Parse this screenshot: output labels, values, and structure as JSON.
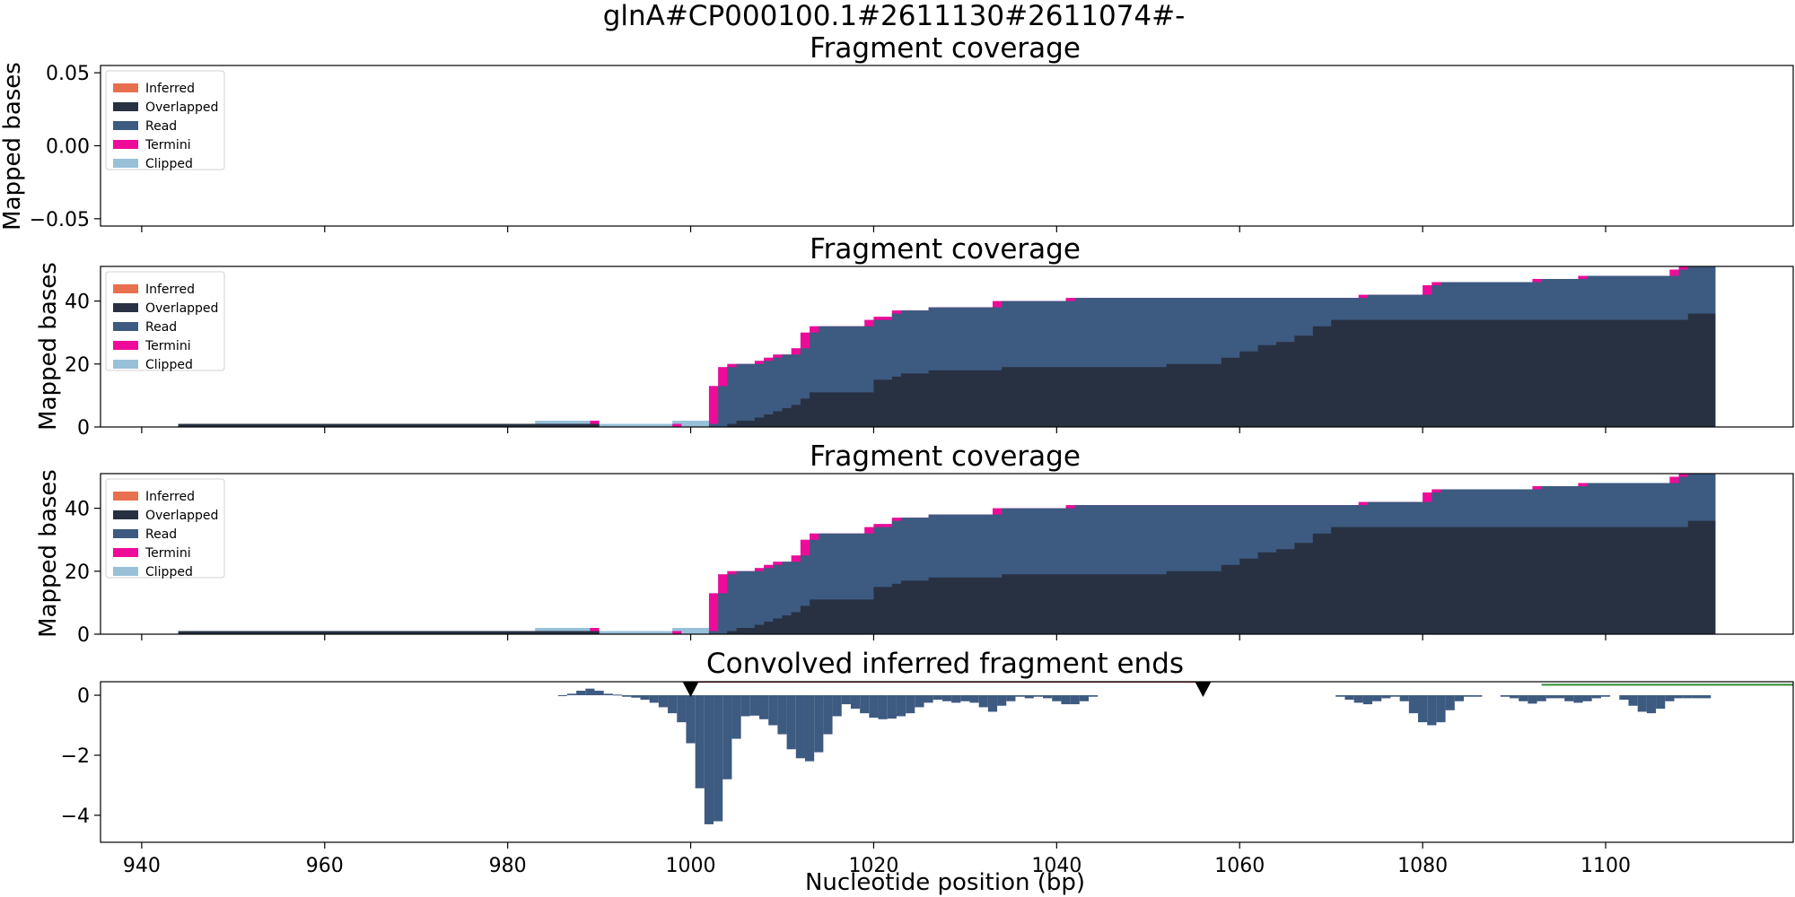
{
  "figure": {
    "suptitle": "glnA#CP000100.1#2611130#2611074#-",
    "xlabel": "Nucleotide position (bp)",
    "xlim": [
      935.5,
      1120.5
    ],
    "xticks": [
      940,
      960,
      980,
      1000,
      1020,
      1040,
      1060,
      1080,
      1100
    ],
    "colors": {
      "Inferred": "#e8704e",
      "Overlapped": "#283142",
      "Read": "#3d5a80",
      "Termini": "#ee0b9a",
      "Clipped": "#98c1d9",
      "red_line": "#8b0000",
      "green_line": "#2e8b2e",
      "marker": "#000000"
    }
  },
  "chart_data": [
    {
      "type": "area",
      "title": "Fragment coverage",
      "ylabel": "Mapped bases",
      "ylim": [
        -0.055,
        0.055
      ],
      "yticks": [
        "0.05",
        "0.00",
        "−0.05"
      ],
      "ytick_values": [
        0.05,
        0.0,
        -0.05
      ],
      "legend": {
        "placement": "top-left",
        "entries": [
          "Inferred",
          "Overlapped",
          "Read",
          "Termini",
          "Clipped"
        ]
      },
      "series": []
    },
    {
      "type": "area",
      "title": "Fragment coverage",
      "ylabel": "Mapped bases",
      "ylim": [
        0,
        51
      ],
      "yticks": [
        "0",
        "20",
        "40"
      ],
      "ytick_values": [
        0,
        20,
        40
      ],
      "legend": {
        "placement": "top-left",
        "entries": [
          "Inferred",
          "Overlapped",
          "Read",
          "Termini",
          "Clipped"
        ]
      },
      "coverage_segments": [
        {
          "x0": 944,
          "x1": 983,
          "overlapped": 1,
          "read": 1,
          "termini": 1,
          "clipped": 1
        },
        {
          "x0": 983,
          "x1": 989,
          "overlapped": 1,
          "read": 1,
          "termini": 1,
          "clipped": 2
        },
        {
          "x0": 989,
          "x1": 990,
          "overlapped": 1,
          "read": 1,
          "termini": 2,
          "clipped": 2
        },
        {
          "x0": 990,
          "x1": 998,
          "overlapped": 0,
          "read": 0,
          "termini": 0,
          "clipped": 1
        },
        {
          "x0": 998,
          "x1": 999,
          "overlapped": 0,
          "read": 0,
          "termini": 1,
          "clipped": 2
        },
        {
          "x0": 999,
          "x1": 1002,
          "overlapped": 0,
          "read": 0,
          "termini": 0,
          "clipped": 2
        },
        {
          "x0": 1002,
          "x1": 1003,
          "overlapped": 0,
          "read": 1,
          "termini": 13,
          "clipped": 13
        },
        {
          "x0": 1003,
          "x1": 1004,
          "overlapped": 0,
          "read": 13,
          "termini": 19,
          "clipped": 19
        },
        {
          "x0": 1004,
          "x1": 1005,
          "overlapped": 1,
          "read": 19,
          "termini": 20,
          "clipped": 20
        },
        {
          "x0": 1005,
          "x1": 1006,
          "overlapped": 2,
          "read": 20,
          "termini": 20,
          "clipped": 20
        },
        {
          "x0": 1006,
          "x1": 1007,
          "overlapped": 2,
          "read": 20,
          "termini": 20,
          "clipped": 20
        },
        {
          "x0": 1007,
          "x1": 1008,
          "overlapped": 3,
          "read": 20,
          "termini": 21,
          "clipped": 21
        },
        {
          "x0": 1008,
          "x1": 1009,
          "overlapped": 4,
          "read": 21,
          "termini": 22,
          "clipped": 22
        },
        {
          "x0": 1009,
          "x1": 1010,
          "overlapped": 5,
          "read": 22,
          "termini": 23,
          "clipped": 23
        },
        {
          "x0": 1010,
          "x1": 1011,
          "overlapped": 6,
          "read": 23,
          "termini": 23,
          "clipped": 23
        },
        {
          "x0": 1011,
          "x1": 1012,
          "overlapped": 7,
          "read": 23,
          "termini": 25,
          "clipped": 25
        },
        {
          "x0": 1012,
          "x1": 1013,
          "overlapped": 9,
          "read": 25,
          "termini": 30,
          "clipped": 30
        },
        {
          "x0": 1013,
          "x1": 1014,
          "overlapped": 11,
          "read": 30,
          "termini": 32,
          "clipped": 32
        },
        {
          "x0": 1014,
          "x1": 1019,
          "overlapped": 11,
          "read": 32,
          "termini": 32,
          "clipped": 32
        },
        {
          "x0": 1019,
          "x1": 1020,
          "overlapped": 11,
          "read": 32,
          "termini": 34,
          "clipped": 34
        },
        {
          "x0": 1020,
          "x1": 1022,
          "overlapped": 15,
          "read": 34,
          "termini": 35,
          "clipped": 35
        },
        {
          "x0": 1022,
          "x1": 1023,
          "overlapped": 16,
          "read": 36,
          "termini": 37,
          "clipped": 37
        },
        {
          "x0": 1023,
          "x1": 1026,
          "overlapped": 17,
          "read": 37,
          "termini": 37,
          "clipped": 37
        },
        {
          "x0": 1026,
          "x1": 1033,
          "overlapped": 18,
          "read": 38,
          "termini": 38,
          "clipped": 38
        },
        {
          "x0": 1033,
          "x1": 1034,
          "overlapped": 18,
          "read": 38,
          "termini": 40,
          "clipped": 40
        },
        {
          "x0": 1034,
          "x1": 1041,
          "overlapped": 19,
          "read": 40,
          "termini": 40,
          "clipped": 40
        },
        {
          "x0": 1041,
          "x1": 1042,
          "overlapped": 19,
          "read": 40,
          "termini": 41,
          "clipped": 41
        },
        {
          "x0": 1042,
          "x1": 1052,
          "overlapped": 19,
          "read": 41,
          "termini": 41,
          "clipped": 41
        },
        {
          "x0": 1052,
          "x1": 1058,
          "overlapped": 20,
          "read": 41,
          "termini": 41,
          "clipped": 41
        },
        {
          "x0": 1058,
          "x1": 1060,
          "overlapped": 22,
          "read": 41,
          "termini": 41,
          "clipped": 41
        },
        {
          "x0": 1060,
          "x1": 1062,
          "overlapped": 24,
          "read": 41,
          "termini": 41,
          "clipped": 41
        },
        {
          "x0": 1062,
          "x1": 1064,
          "overlapped": 26,
          "read": 41,
          "termini": 41,
          "clipped": 41
        },
        {
          "x0": 1064,
          "x1": 1066,
          "overlapped": 27,
          "read": 41,
          "termini": 41,
          "clipped": 41
        },
        {
          "x0": 1066,
          "x1": 1068,
          "overlapped": 29,
          "read": 41,
          "termini": 41,
          "clipped": 41
        },
        {
          "x0": 1068,
          "x1": 1070,
          "overlapped": 32,
          "read": 41,
          "termini": 41,
          "clipped": 41
        },
        {
          "x0": 1070,
          "x1": 1073,
          "overlapped": 34,
          "read": 41,
          "termini": 41,
          "clipped": 41
        },
        {
          "x0": 1073,
          "x1": 1074,
          "overlapped": 34,
          "read": 41,
          "termini": 42,
          "clipped": 42
        },
        {
          "x0": 1074,
          "x1": 1080,
          "overlapped": 34,
          "read": 42,
          "termini": 42,
          "clipped": 42
        },
        {
          "x0": 1080,
          "x1": 1081,
          "overlapped": 34,
          "read": 42,
          "termini": 45,
          "clipped": 45
        },
        {
          "x0": 1081,
          "x1": 1082,
          "overlapped": 34,
          "read": 45,
          "termini": 46,
          "clipped": 46
        },
        {
          "x0": 1082,
          "x1": 1092,
          "overlapped": 34,
          "read": 46,
          "termini": 46,
          "clipped": 46
        },
        {
          "x0": 1092,
          "x1": 1093,
          "overlapped": 34,
          "read": 46,
          "termini": 47,
          "clipped": 47
        },
        {
          "x0": 1093,
          "x1": 1097,
          "overlapped": 34,
          "read": 47,
          "termini": 47,
          "clipped": 47
        },
        {
          "x0": 1097,
          "x1": 1098,
          "overlapped": 34,
          "read": 47,
          "termini": 48,
          "clipped": 48
        },
        {
          "x0": 1098,
          "x1": 1107,
          "overlapped": 34,
          "read": 48,
          "termini": 48,
          "clipped": 48
        },
        {
          "x0": 1107,
          "x1": 1108,
          "overlapped": 34,
          "read": 48,
          "termini": 50,
          "clipped": 50
        },
        {
          "x0": 1108,
          "x1": 1109,
          "overlapped": 34,
          "read": 50,
          "termini": 51,
          "clipped": 51
        },
        {
          "x0": 1109,
          "x1": 1112,
          "overlapped": 36,
          "read": 51,
          "termini": 51,
          "clipped": 51
        }
      ]
    },
    {
      "type": "area",
      "title": "Fragment coverage",
      "ylabel": "Mapped bases",
      "ylim": [
        0,
        51
      ],
      "yticks": [
        "0",
        "20",
        "40"
      ],
      "ytick_values": [
        0,
        20,
        40
      ],
      "legend": {
        "placement": "top-left",
        "entries": [
          "Inferred",
          "Overlapped",
          "Read",
          "Termini",
          "Clipped"
        ]
      },
      "same_data_as": 1
    },
    {
      "type": "bar",
      "title": "Convolved inferred fragment ends",
      "ylabel": "",
      "ylim": [
        -4.9,
        0.45
      ],
      "yticks": [
        "0",
        "−2",
        "−4"
      ],
      "ytick_values": [
        0,
        -2,
        -4
      ],
      "bars": [
        [
          986,
          -0.02
        ],
        [
          987,
          0.05
        ],
        [
          988,
          0.15
        ],
        [
          989,
          0.22
        ],
        [
          990,
          0.15
        ],
        [
          991,
          0.05
        ],
        [
          992,
          0.02
        ],
        [
          993,
          -0.05
        ],
        [
          994,
          -0.08
        ],
        [
          995,
          -0.15
        ],
        [
          996,
          -0.25
        ],
        [
          997,
          -0.4
        ],
        [
          998,
          -0.6
        ],
        [
          999,
          -0.9
        ],
        [
          1000,
          -1.6
        ],
        [
          1001,
          -3.1
        ],
        [
          1002,
          -4.3
        ],
        [
          1003,
          -4.2
        ],
        [
          1004,
          -2.8
        ],
        [
          1005,
          -1.45
        ],
        [
          1006,
          -0.7
        ],
        [
          1007,
          -0.68
        ],
        [
          1008,
          -0.8
        ],
        [
          1009,
          -1.0
        ],
        [
          1010,
          -1.3
        ],
        [
          1011,
          -1.8
        ],
        [
          1012,
          -2.1
        ],
        [
          1013,
          -2.2
        ],
        [
          1014,
          -1.9
        ],
        [
          1015,
          -1.3
        ],
        [
          1016,
          -0.7
        ],
        [
          1017,
          -0.3
        ],
        [
          1018,
          -0.45
        ],
        [
          1019,
          -0.6
        ],
        [
          1020,
          -0.75
        ],
        [
          1021,
          -0.8
        ],
        [
          1022,
          -0.78
        ],
        [
          1023,
          -0.7
        ],
        [
          1024,
          -0.6
        ],
        [
          1025,
          -0.4
        ],
        [
          1026,
          -0.25
        ],
        [
          1027,
          -0.15
        ],
        [
          1028,
          -0.2
        ],
        [
          1029,
          -0.25
        ],
        [
          1030,
          -0.2
        ],
        [
          1031,
          -0.25
        ],
        [
          1032,
          -0.4
        ],
        [
          1033,
          -0.55
        ],
        [
          1034,
          -0.35
        ],
        [
          1035,
          -0.2
        ],
        [
          1036,
          -0.05
        ],
        [
          1037,
          -0.1
        ],
        [
          1038,
          -0.05
        ],
        [
          1039,
          -0.1
        ],
        [
          1040,
          -0.2
        ],
        [
          1041,
          -0.3
        ],
        [
          1042,
          -0.3
        ],
        [
          1043,
          -0.2
        ],
        [
          1044,
          -0.05
        ],
        [
          1071,
          -0.05
        ],
        [
          1072,
          -0.15
        ],
        [
          1073,
          -0.25
        ],
        [
          1074,
          -0.3
        ],
        [
          1075,
          -0.2
        ],
        [
          1076,
          -0.1
        ],
        [
          1077,
          -0.05
        ],
        [
          1078,
          -0.2
        ],
        [
          1079,
          -0.6
        ],
        [
          1080,
          -0.9
        ],
        [
          1081,
          -1.0
        ],
        [
          1082,
          -0.9
        ],
        [
          1083,
          -0.5
        ],
        [
          1084,
          -0.2
        ],
        [
          1085,
          -0.05
        ],
        [
          1086,
          -0.05
        ],
        [
          1089,
          -0.05
        ],
        [
          1090,
          -0.1
        ],
        [
          1091,
          -0.2
        ],
        [
          1092,
          -0.28
        ],
        [
          1093,
          -0.2
        ],
        [
          1094,
          -0.1
        ],
        [
          1095,
          -0.1
        ],
        [
          1096,
          -0.2
        ],
        [
          1097,
          -0.25
        ],
        [
          1098,
          -0.2
        ],
        [
          1099,
          -0.1
        ],
        [
          1100,
          -0.05
        ],
        [
          1102,
          -0.15
        ],
        [
          1103,
          -0.35
        ],
        [
          1104,
          -0.55
        ],
        [
          1105,
          -0.6
        ],
        [
          1106,
          -0.45
        ],
        [
          1107,
          -0.2
        ],
        [
          1108,
          -0.1
        ],
        [
          1109,
          -0.1
        ],
        [
          1110,
          -0.1
        ],
        [
          1111,
          -0.1
        ]
      ],
      "markers": [
        1000,
        1056
      ],
      "red_line": {
        "x0": 1000,
        "x1": 1056,
        "y": 0.45
      },
      "green_line": {
        "x0": 1093,
        "x1": 1120.5,
        "y": 0.35
      }
    }
  ]
}
